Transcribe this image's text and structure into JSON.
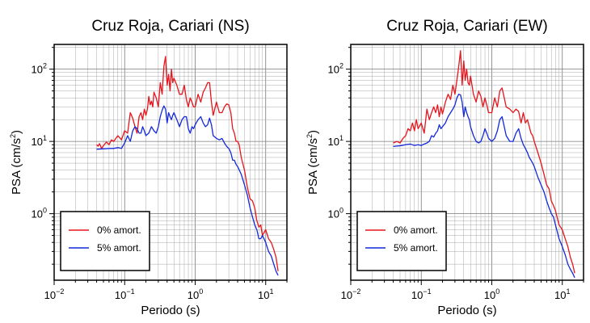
{
  "chart_data": [
    {
      "type": "line",
      "title": "Cruz Roja, Cariari (NS)",
      "xlabel": "Periodo (s)",
      "ylabel": "PSA (cm/s²)",
      "ylabel_base": "PSA (cm/s",
      "ylabel_sup": "2",
      "ylabel_end": ")",
      "xscale": "log",
      "yscale": "log",
      "xlim": [
        0.01,
        20
      ],
      "ylim": [
        0.12,
        220
      ],
      "x_ticks": [
        {
          "base": "10",
          "exp": "−2"
        },
        {
          "base": "10",
          "exp": "−1"
        },
        {
          "base": "10",
          "exp": "0"
        },
        {
          "base": "10",
          "exp": "1"
        }
      ],
      "y_ticks": [
        {
          "base": "10",
          "exp": "0"
        },
        {
          "base": "10",
          "exp": "1"
        },
        {
          "base": "10",
          "exp": "2"
        }
      ],
      "grid": true,
      "legend_position": "bottom-left",
      "series": [
        {
          "name": "0% amort.",
          "color": "#e8141c",
          "x": [
            0.04,
            0.042,
            0.044,
            0.047,
            0.05,
            0.055,
            0.06,
            0.065,
            0.07,
            0.08,
            0.09,
            0.1,
            0.11,
            0.12,
            0.13,
            0.14,
            0.15,
            0.16,
            0.17,
            0.18,
            0.19,
            0.2,
            0.21,
            0.22,
            0.23,
            0.24,
            0.25,
            0.26,
            0.28,
            0.3,
            0.32,
            0.34,
            0.36,
            0.38,
            0.4,
            0.42,
            0.44,
            0.46,
            0.48,
            0.5,
            0.55,
            0.6,
            0.65,
            0.7,
            0.75,
            0.8,
            0.85,
            0.9,
            0.95,
            1.0,
            1.1,
            1.2,
            1.3,
            1.4,
            1.5,
            1.6,
            1.7,
            1.8,
            2.0,
            2.2,
            2.4,
            2.6,
            2.8,
            3.0,
            3.2,
            3.4,
            3.6,
            3.8,
            4.0,
            4.2,
            4.5,
            5.0,
            5.5,
            6.0,
            6.5,
            7.0,
            7.5,
            8.0,
            8.5,
            9.0,
            10.0,
            11.0,
            12.0,
            13.0,
            14.0,
            15.0
          ],
          "y": [
            9,
            8.6,
            9.3,
            8,
            8.7,
            9.8,
            9.0,
            10.5,
            10,
            12,
            10.5,
            14,
            13,
            25,
            21,
            16,
            13,
            22,
            25,
            20,
            28,
            23,
            28,
            42,
            32,
            36,
            30,
            48,
            40,
            30,
            65,
            45,
            110,
            150,
            60,
            85,
            50,
            100,
            65,
            75,
            60,
            45,
            45,
            60,
            38,
            30,
            40,
            35,
            30,
            30,
            45,
            35,
            48,
            55,
            65,
            65,
            35,
            23,
            35,
            25,
            25,
            30,
            33,
            32,
            25,
            15,
            13,
            10,
            10,
            9,
            6,
            4,
            2.3,
            1.6,
            1.5,
            1.2,
            0.8,
            0.65,
            0.7,
            0.5,
            0.6,
            0.45,
            0.4,
            0.32,
            0.25,
            0.16
          ]
        },
        {
          "name": "5% amort.",
          "color": "#1428dc",
          "x": [
            0.04,
            0.05,
            0.06,
            0.07,
            0.08,
            0.09,
            0.1,
            0.11,
            0.12,
            0.13,
            0.14,
            0.15,
            0.16,
            0.17,
            0.18,
            0.19,
            0.2,
            0.22,
            0.24,
            0.26,
            0.28,
            0.3,
            0.32,
            0.34,
            0.36,
            0.38,
            0.4,
            0.42,
            0.44,
            0.46,
            0.48,
            0.5,
            0.55,
            0.6,
            0.65,
            0.7,
            0.75,
            0.8,
            0.85,
            0.9,
            0.95,
            1.0,
            1.1,
            1.2,
            1.3,
            1.4,
            1.5,
            1.6,
            1.7,
            1.8,
            2.0,
            2.2,
            2.4,
            2.6,
            2.8,
            3.0,
            3.2,
            3.4,
            3.6,
            3.8,
            4.0,
            4.5,
            5.0,
            5.5,
            6.0,
            6.5,
            7.0,
            7.5,
            8.0,
            8.5,
            9.0,
            10.0,
            11.0,
            12.0,
            13.0,
            14.0,
            15.0
          ],
          "y": [
            7.8,
            7.9,
            8,
            8,
            8.2,
            8,
            9.5,
            12,
            10,
            14,
            16,
            15,
            13,
            13,
            16,
            14,
            12,
            13,
            16,
            14,
            13,
            16,
            22,
            27,
            31,
            28,
            18,
            25,
            22,
            20,
            23,
            25,
            20,
            16,
            20,
            22,
            22,
            15,
            13,
            16,
            15,
            17,
            20,
            22,
            18,
            16,
            17,
            21,
            17,
            12,
            11,
            10.5,
            11,
            9.5,
            8.5,
            8,
            7,
            5.5,
            5.5,
            4.8,
            4.5,
            3.5,
            2.5,
            1.8,
            1.2,
            0.9,
            0.7,
            0.6,
            0.45,
            0.45,
            0.5,
            0.4,
            0.3,
            0.26,
            0.2,
            0.16,
            0.14
          ]
        }
      ]
    },
    {
      "type": "line",
      "title": "Cruz Roja, Cariari (EW)",
      "xlabel": "Periodo (s)",
      "ylabel": "PSA (cm/s²)",
      "ylabel_base": "PSA (cm/s",
      "ylabel_sup": "2",
      "ylabel_end": ")",
      "xscale": "log",
      "yscale": "log",
      "xlim": [
        0.01,
        20
      ],
      "ylim": [
        0.12,
        220
      ],
      "x_ticks": [
        {
          "base": "10",
          "exp": "−2"
        },
        {
          "base": "10",
          "exp": "−1"
        },
        {
          "base": "10",
          "exp": "0"
        },
        {
          "base": "10",
          "exp": "1"
        }
      ],
      "y_ticks": [
        {
          "base": "10",
          "exp": "0"
        },
        {
          "base": "10",
          "exp": "1"
        },
        {
          "base": "10",
          "exp": "2"
        }
      ],
      "grid": true,
      "legend_position": "bottom-left",
      "series": [
        {
          "name": "0% amort.",
          "color": "#e8141c",
          "x": [
            0.04,
            0.045,
            0.05,
            0.055,
            0.06,
            0.065,
            0.07,
            0.075,
            0.08,
            0.085,
            0.09,
            0.1,
            0.11,
            0.12,
            0.13,
            0.14,
            0.15,
            0.16,
            0.17,
            0.18,
            0.19,
            0.2,
            0.22,
            0.24,
            0.26,
            0.28,
            0.3,
            0.32,
            0.34,
            0.36,
            0.38,
            0.4,
            0.42,
            0.44,
            0.46,
            0.48,
            0.5,
            0.55,
            0.6,
            0.65,
            0.7,
            0.75,
            0.8,
            0.85,
            0.9,
            1.0,
            1.1,
            1.2,
            1.3,
            1.4,
            1.5,
            1.6,
            1.8,
            2.0,
            2.2,
            2.4,
            2.6,
            2.8,
            3.0,
            3.2,
            3.4,
            3.6,
            3.8,
            4.0,
            4.5,
            5.0,
            5.5,
            6.0,
            6.5,
            7.0,
            7.5,
            8.0,
            9.0,
            10.0,
            11.0,
            12.0,
            13.0,
            14.0,
            15.0
          ],
          "y": [
            9.5,
            10,
            9.5,
            11,
            12,
            15,
            14,
            18,
            14,
            20,
            15,
            18,
            13,
            28,
            20,
            25,
            30,
            25,
            32,
            22,
            30,
            24,
            35,
            45,
            38,
            60,
            45,
            70,
            110,
            180,
            60,
            130,
            70,
            100,
            65,
            60,
            80,
            45,
            35,
            50,
            42,
            30,
            40,
            32,
            25,
            25,
            40,
            30,
            50,
            55,
            40,
            30,
            28,
            25,
            28,
            26,
            18,
            25,
            18,
            20,
            16,
            13,
            12,
            10,
            7,
            5,
            3.5,
            2.5,
            2.2,
            1.5,
            1.3,
            1.1,
            0.7,
            0.6,
            0.45,
            0.35,
            0.25,
            0.2,
            0.15
          ]
        },
        {
          "name": "5% amort.",
          "color": "#1428dc",
          "x": [
            0.04,
            0.05,
            0.06,
            0.07,
            0.08,
            0.09,
            0.1,
            0.11,
            0.12,
            0.13,
            0.14,
            0.15,
            0.16,
            0.17,
            0.18,
            0.19,
            0.2,
            0.22,
            0.24,
            0.26,
            0.28,
            0.3,
            0.32,
            0.34,
            0.36,
            0.38,
            0.4,
            0.42,
            0.44,
            0.46,
            0.48,
            0.5,
            0.55,
            0.6,
            0.65,
            0.7,
            0.75,
            0.8,
            0.85,
            0.9,
            1.0,
            1.1,
            1.2,
            1.3,
            1.4,
            1.5,
            1.6,
            1.8,
            2.0,
            2.2,
            2.4,
            2.6,
            2.8,
            3.0,
            3.2,
            3.4,
            3.6,
            3.8,
            4.0,
            4.5,
            5.0,
            5.5,
            6.0,
            6.5,
            7.0,
            7.5,
            8.0,
            9.0,
            10.0,
            11.0,
            12.0,
            13.0,
            14.0,
            15.0
          ],
          "y": [
            8.5,
            8.7,
            9,
            9.2,
            8.8,
            9,
            8.8,
            9.2,
            9.5,
            10,
            12,
            11.5,
            13,
            14,
            17,
            15,
            16,
            18,
            22,
            25,
            28,
            32,
            40,
            45,
            44,
            35,
            22,
            30,
            25,
            22,
            20,
            16,
            12,
            10,
            9.5,
            10,
            12,
            15,
            13,
            11,
            10,
            11,
            14,
            20,
            22,
            16,
            12,
            10,
            10,
            13,
            15,
            11,
            9,
            8,
            7,
            6,
            5.5,
            5,
            4.5,
            3.2,
            2.5,
            2,
            1.5,
            1.2,
            1.0,
            0.9,
            0.7,
            0.45,
            0.35,
            0.27,
            0.2,
            0.17,
            0.15,
            0.13
          ]
        }
      ]
    }
  ]
}
